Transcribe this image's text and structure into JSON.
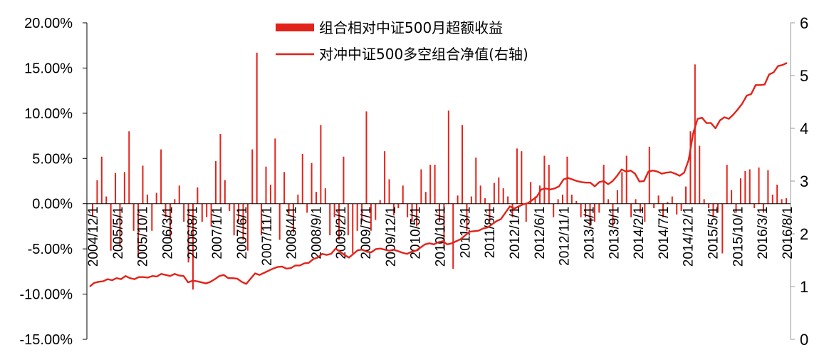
{
  "chart_data": {
    "type": "bar+line",
    "legend": [
      {
        "name": "组合相对中证500月超额收益",
        "kind": "bar",
        "color": "#e2231a"
      },
      {
        "name": "对冲中证500多空组合净值(右轴)",
        "kind": "line",
        "color": "#e2231a"
      }
    ],
    "y_left": {
      "min": -15,
      "max": 20,
      "step": 5,
      "tick_labels": [
        "20.00%",
        "15.00%",
        "10.00%",
        "5.00%",
        "0.00%",
        "-5.00%",
        "-10.00%",
        "-15.00%"
      ]
    },
    "y_right": {
      "min": 0,
      "max": 6,
      "step": 1,
      "tick_labels": [
        "6",
        "5",
        "4",
        "3",
        "2",
        "1",
        "0"
      ]
    },
    "x_tick_labels": [
      "2004/12/1",
      "2005/5/1",
      "2005/10/1",
      "2006/3/1",
      "2006/8/1",
      "2007/1/1",
      "2007/6/1",
      "2007/11/1",
      "2008/4/1",
      "2008/9/1",
      "2009/2/1",
      "2009/7/1",
      "2009/12/1",
      "2010/5/1",
      "2010/10/1",
      "2011/3/1",
      "2011/8/1",
      "2012/1/1",
      "2012/6/1",
      "2012/11/1",
      "2013/4/1",
      "2013/9/1",
      "2014/2/1",
      "2014/7/1",
      "2014/12/1",
      "2015/5/1",
      "2015/10/1",
      "2016/3/1",
      "2016/8/1"
    ],
    "monthly_excess_return_pct": [
      -1.4,
      2.6,
      5.2,
      0.8,
      -5.2,
      3.4,
      -4.8,
      3.5,
      8.0,
      -3.0,
      -6.0,
      4.2,
      1.0,
      -3.0,
      1.2,
      6.0,
      -1.5,
      -3.8,
      0.5,
      2.0,
      -2.0,
      -6.5,
      -9.5,
      1.8,
      -2.0,
      -1.5,
      -2.5,
      4.7,
      7.7,
      2.6,
      -0.8,
      -3.5,
      -2.0,
      -4.0,
      -5.2,
      6.0,
      16.7,
      -3.5,
      4.1,
      2.1,
      7.2,
      -4.0,
      3.5,
      -1.2,
      -3.2,
      1.0,
      5.5,
      -1.0,
      4.5,
      1.3,
      8.7,
      1.7,
      -3.5,
      -1.5,
      -4.0,
      5.2,
      -3.5,
      -5.5,
      -3.0,
      -2.0,
      10.2,
      -3.0,
      -1.8,
      0.4,
      5.8,
      2.7,
      -1.3,
      -0.5,
      2.0,
      -1.5,
      -2.0,
      -2.5,
      3.8,
      1.3,
      4.3,
      4.3,
      -2.0,
      -5.0,
      10.3,
      -7.2,
      0.9,
      8.7,
      -3.0,
      0.8,
      5.1,
      2.0,
      0.6,
      -2.0,
      2.3,
      2.9,
      1.7,
      0.8,
      -1.5,
      6.1,
      5.8,
      -2.0,
      2.4,
      0.8,
      2.0,
      5.3,
      4.3,
      -1.5,
      0.5,
      1.0,
      5.2,
      1.0,
      0.3,
      -1.5,
      -1.5,
      -2.5,
      -2.0,
      -1.0,
      4.3,
      0.5,
      -2.5,
      1.5,
      3.5,
      5.3,
      -1.5,
      0.5,
      -1.0,
      -2.0,
      6.3,
      -0.5,
      0.9,
      -1.5,
      0.2,
      0.8,
      -1.2,
      -0.8,
      1.9,
      8.0,
      15.4,
      6.4,
      0.5,
      -0.5,
      -1.5,
      -1.0,
      -5.5,
      4.3,
      1.5,
      -1.0,
      2.8,
      3.6,
      3.8,
      -0.5,
      4.0,
      -1.0,
      3.7,
      1.0,
      2.1,
      0.5,
      0.6
    ],
    "nav_right_axis": [
      1.0,
      1.07,
      1.09,
      1.1,
      1.14,
      1.12,
      1.16,
      1.14,
      1.2,
      1.16,
      1.14,
      1.18,
      1.18,
      1.17,
      1.2,
      1.19,
      1.24,
      1.22,
      1.2,
      1.24,
      1.21,
      1.2,
      1.08,
      1.11,
      1.1,
      1.08,
      1.06,
      1.09,
      1.14,
      1.2,
      1.22,
      1.16,
      1.16,
      1.15,
      1.09,
      1.05,
      1.15,
      1.25,
      1.22,
      1.26,
      1.3,
      1.34,
      1.37,
      1.38,
      1.34,
      1.35,
      1.4,
      1.4,
      1.44,
      1.45,
      1.52,
      1.55,
      1.62,
      1.6,
      1.62,
      1.72,
      1.66,
      1.6,
      1.55,
      1.62,
      1.69,
      1.7,
      1.66,
      1.65,
      1.71,
      1.72,
      1.7,
      1.68,
      1.7,
      1.67,
      1.64,
      1.62,
      1.66,
      1.68,
      1.74,
      1.8,
      1.82,
      1.8,
      1.84,
      1.86,
      1.8,
      1.82,
      1.86,
      1.9,
      1.97,
      2.04,
      2.05,
      2.06,
      2.1,
      2.12,
      2.18,
      2.24,
      2.28,
      2.4,
      2.52,
      2.48,
      2.52,
      2.56,
      2.58,
      2.64,
      2.7,
      2.84,
      2.86,
      2.84,
      2.86,
      2.9,
      3.03,
      3.06,
      3.03,
      3.0,
      2.98,
      2.97,
      2.97,
      2.9,
      2.98,
      3.0,
      2.94,
      3.0,
      3.1,
      3.22,
      3.18,
      3.2,
      3.14,
      2.99,
      3.0,
      3.18,
      3.2,
      3.18,
      3.14,
      3.16,
      3.17,
      3.14,
      3.1,
      3.16,
      3.4,
      3.9,
      4.18,
      4.2,
      4.1,
      4.1,
      4.0,
      4.15,
      4.21,
      4.18,
      4.26,
      4.36,
      4.47,
      4.62,
      4.65,
      4.82,
      4.82,
      4.83,
      5.02,
      5.06,
      5.18,
      5.2,
      5.24
    ]
  }
}
